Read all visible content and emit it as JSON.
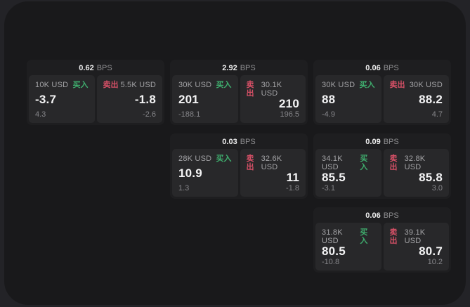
{
  "labels": {
    "bps_unit": "BPS",
    "buy": "买入",
    "sell": "卖出"
  },
  "colors": {
    "buy": "#3fae6e",
    "sell": "#d65066",
    "panel_bg": "#19191b",
    "card_bg": "#1e1e20",
    "tile_bg": "#28282a"
  },
  "cards": [
    {
      "row": 1,
      "col": 1,
      "bps": "0.62",
      "buy": {
        "amount": "10K USD",
        "value": "-3.7",
        "delta": "4.3"
      },
      "sell": {
        "amount": "5.5K USD",
        "value": "-1.8",
        "delta": "-2.6"
      }
    },
    {
      "row": 1,
      "col": 2,
      "bps": "2.92",
      "buy": {
        "amount": "30K USD",
        "value": "201",
        "delta": "-188.1"
      },
      "sell": {
        "amount": "30.1K USD",
        "value": "210",
        "delta": "196.5"
      }
    },
    {
      "row": 1,
      "col": 3,
      "bps": "0.06",
      "buy": {
        "amount": "30K USD",
        "value": "88",
        "delta": "-4.9"
      },
      "sell": {
        "amount": "30K USD",
        "value": "88.2",
        "delta": "4.7"
      }
    },
    {
      "row": 2,
      "col": 2,
      "bps": "0.03",
      "buy": {
        "amount": "28K USD",
        "value": "10.9",
        "delta": "1.3"
      },
      "sell": {
        "amount": "32.6K USD",
        "value": "11",
        "delta": "-1.8"
      }
    },
    {
      "row": 2,
      "col": 3,
      "bps": "0.09",
      "buy": {
        "amount": "34.1K USD",
        "value": "85.5",
        "delta": "-3.1"
      },
      "sell": {
        "amount": "32.8K USD",
        "value": "85.8",
        "delta": "3.0"
      }
    },
    {
      "row": 3,
      "col": 3,
      "bps": "0.06",
      "buy": {
        "amount": "31.8K USD",
        "value": "80.5",
        "delta": "-10.8"
      },
      "sell": {
        "amount": "39.1K USD",
        "value": "80.7",
        "delta": "10.2"
      }
    }
  ]
}
